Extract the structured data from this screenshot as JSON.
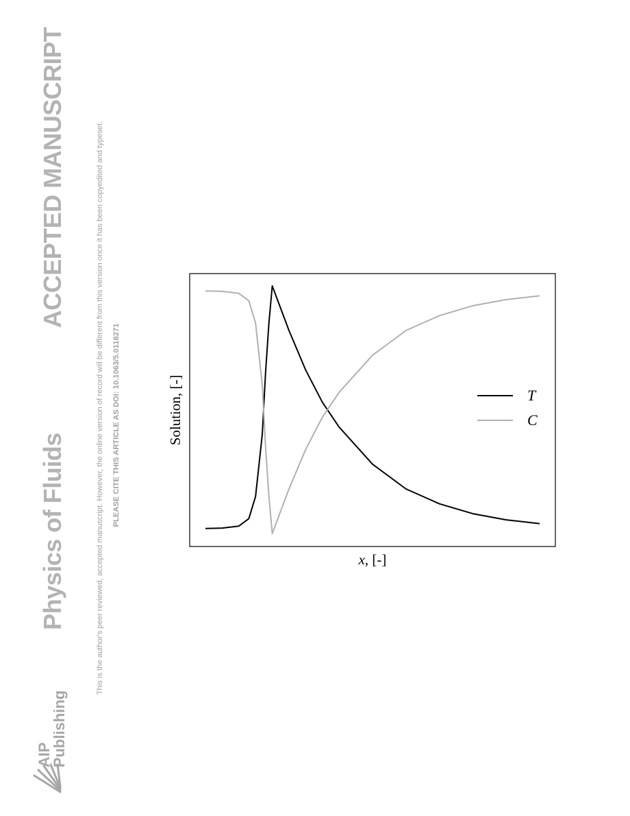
{
  "header": {
    "accepted": "ACCEPTED MANUSCRIPT",
    "journal": "Physics of Fluids",
    "publisher_line1": "AIP",
    "publisher_line2": "Publishing",
    "disclaimer": "This is the author's peer reviewed, accepted manuscript. However, the online version of record will be different from this version once it has been copyedited and typeset.",
    "cite": "PLEASE CITE THIS ARTICLE AS DOI: 10.1063/5.0118271"
  },
  "chart_data": {
    "type": "line",
    "xlabel_var": "x",
    "xlabel_unit": ", [-]",
    "ylabel": "Solution, [-]",
    "xlim": [
      0,
      1
    ],
    "ylim": [
      0,
      1
    ],
    "grid": false,
    "legend_position": "right",
    "series": [
      {
        "name": "T",
        "color": "#000000",
        "x": [
          0,
          0.05,
          0.1,
          0.13,
          0.15,
          0.17,
          0.18,
          0.19,
          0.2,
          0.25,
          0.3,
          0.35,
          0.4,
          0.5,
          0.6,
          0.7,
          0.8,
          0.9,
          1.0
        ],
        "y": [
          0.02,
          0.022,
          0.03,
          0.06,
          0.15,
          0.4,
          0.65,
          0.85,
          1.0,
          0.82,
          0.66,
          0.53,
          0.43,
          0.28,
          0.18,
          0.12,
          0.08,
          0.055,
          0.04
        ]
      },
      {
        "name": "C",
        "color": "#b0b0b0",
        "x": [
          0,
          0.05,
          0.1,
          0.13,
          0.15,
          0.17,
          0.18,
          0.19,
          0.2,
          0.25,
          0.3,
          0.35,
          0.4,
          0.5,
          0.6,
          0.7,
          0.8,
          0.9,
          1.0
        ],
        "y": [
          0.98,
          0.978,
          0.97,
          0.94,
          0.85,
          0.6,
          0.35,
          0.15,
          0.0,
          0.18,
          0.34,
          0.47,
          0.57,
          0.72,
          0.82,
          0.88,
          0.92,
          0.945,
          0.96
        ]
      }
    ]
  }
}
